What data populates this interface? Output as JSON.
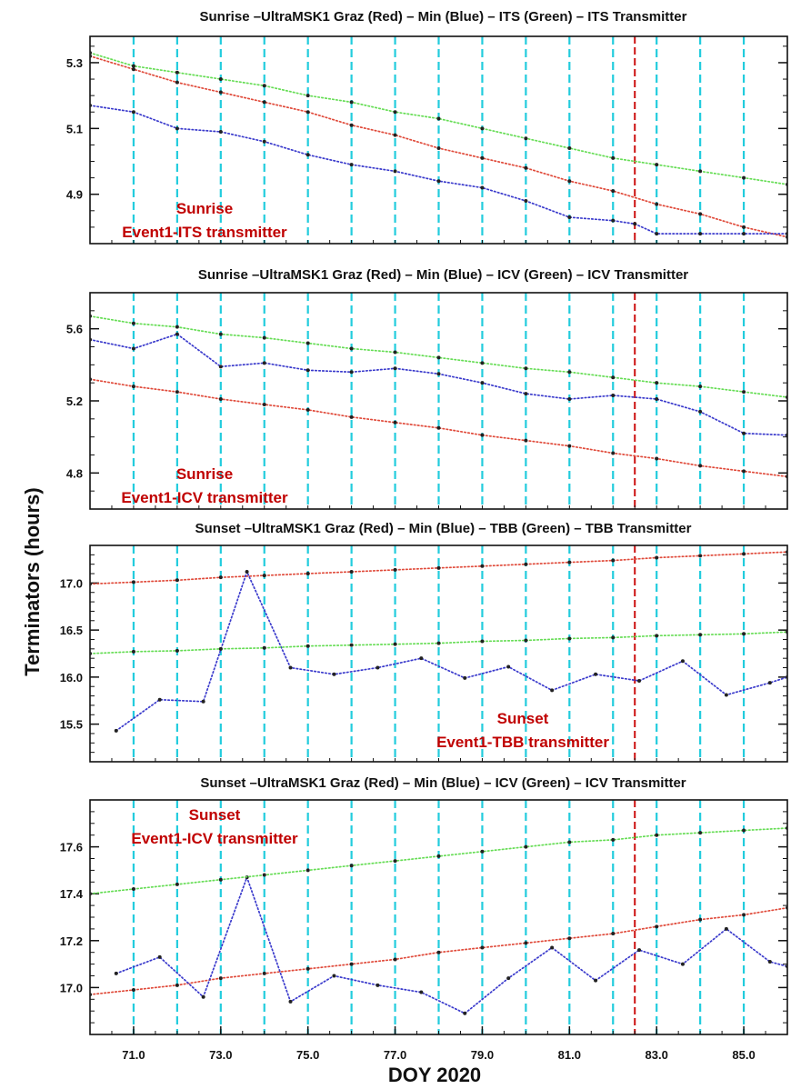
{
  "figure": {
    "ylabel": "Terminators (hours)",
    "xlabel": "DOY 2020"
  },
  "colors": {
    "red": "#e04a3a",
    "blue": "#3a3acc",
    "green": "#66dd55",
    "grid": "#22ccdd",
    "event": "#cc1111",
    "annotation": "#c00000"
  },
  "chart_data": [
    {
      "type": "line",
      "title": "Sunrise –UltraMSK1 Graz (Red) – Min (Blue) – ITS (Green) – ITS Transmitter",
      "annotation": [
        "Sunrise",
        "Event1-ITS transmitter"
      ],
      "annotation_position": "bottom-left",
      "event_day": 82.5,
      "grid": true,
      "xlim": [
        70,
        86
      ],
      "ylim": [
        4.75,
        5.38
      ],
      "yticks": [
        4.9,
        5.1,
        5.3
      ],
      "ytick_labels": [
        "4.9",
        "5.1",
        "5.3"
      ],
      "xticks": [],
      "xtick_labels": [],
      "series": [
        {
          "name": "UltraMSK1 Graz",
          "color": "red",
          "x": [
            70,
            71,
            72,
            73,
            74,
            75,
            76,
            77,
            78,
            79,
            80,
            81,
            82,
            83,
            84,
            85,
            86
          ],
          "y": [
            5.32,
            5.28,
            5.24,
            5.21,
            5.18,
            5.15,
            5.11,
            5.08,
            5.04,
            5.01,
            4.98,
            4.94,
            4.91,
            4.87,
            4.84,
            4.8,
            4.77
          ]
        },
        {
          "name": "Min",
          "color": "blue",
          "x": [
            70,
            71,
            72,
            73,
            74,
            75,
            76,
            77,
            78,
            79,
            80,
            81,
            82,
            82.5,
            83,
            84,
            85,
            86
          ],
          "y": [
            5.17,
            5.15,
            5.1,
            5.09,
            5.06,
            5.02,
            4.99,
            4.97,
            4.94,
            4.92,
            4.88,
            4.83,
            4.82,
            4.81,
            4.78,
            4.78,
            4.78,
            4.78
          ]
        },
        {
          "name": "ITS",
          "color": "green",
          "x": [
            70,
            71,
            72,
            73,
            74,
            75,
            76,
            77,
            78,
            79,
            80,
            81,
            82,
            83,
            84,
            85,
            86
          ],
          "y": [
            5.33,
            5.29,
            5.27,
            5.25,
            5.23,
            5.2,
            5.18,
            5.15,
            5.13,
            5.1,
            5.07,
            5.04,
            5.01,
            4.99,
            4.97,
            4.95,
            4.93
          ]
        }
      ]
    },
    {
      "type": "line",
      "title": "Sunrise –UltraMSK1 Graz (Red) – Min (Blue) – ICV (Green) – ICV Transmitter",
      "annotation": [
        "Sunrise",
        "Event1-ICV transmitter"
      ],
      "annotation_position": "bottom-left",
      "event_day": 82.5,
      "grid": true,
      "xlim": [
        70,
        86
      ],
      "ylim": [
        4.6,
        5.8
      ],
      "yticks": [
        4.8,
        5.2,
        5.6
      ],
      "ytick_labels": [
        "4.8",
        "5.2",
        "5.6"
      ],
      "xticks": [],
      "xtick_labels": [],
      "series": [
        {
          "name": "UltraMSK1 Graz",
          "color": "red",
          "x": [
            70,
            71,
            72,
            73,
            74,
            75,
            76,
            77,
            78,
            79,
            80,
            81,
            82,
            83,
            84,
            85,
            86
          ],
          "y": [
            5.32,
            5.28,
            5.25,
            5.21,
            5.18,
            5.15,
            5.11,
            5.08,
            5.05,
            5.01,
            4.98,
            4.95,
            4.91,
            4.88,
            4.84,
            4.81,
            4.78
          ]
        },
        {
          "name": "Min",
          "color": "blue",
          "x": [
            70,
            71,
            72,
            73,
            74,
            75,
            76,
            77,
            78,
            79,
            80,
            81,
            82,
            83,
            84,
            85,
            86
          ],
          "y": [
            5.54,
            5.49,
            5.57,
            5.39,
            5.41,
            5.37,
            5.36,
            5.38,
            5.35,
            5.3,
            5.24,
            5.21,
            5.23,
            5.21,
            5.14,
            5.02,
            5.01
          ]
        },
        {
          "name": "ICV",
          "color": "green",
          "x": [
            70,
            71,
            72,
            73,
            74,
            75,
            76,
            77,
            78,
            79,
            80,
            81,
            82,
            83,
            84,
            85,
            86
          ],
          "y": [
            5.67,
            5.63,
            5.61,
            5.57,
            5.55,
            5.52,
            5.49,
            5.47,
            5.44,
            5.41,
            5.38,
            5.36,
            5.33,
            5.3,
            5.28,
            5.25,
            5.22
          ]
        }
      ]
    },
    {
      "type": "line",
      "title": "Sunset –UltraMSK1 Graz (Red) – Min (Blue) – TBB (Green) – TBB Transmitter",
      "annotation": [
        "Sunset",
        "Event1-TBB transmitter"
      ],
      "annotation_position": "bottom-center",
      "event_day": 82.5,
      "grid": true,
      "xlim": [
        70,
        86
      ],
      "ylim": [
        15.1,
        17.4
      ],
      "yticks": [
        15.5,
        16.0,
        16.5,
        17.0
      ],
      "ytick_labels": [
        "15.5",
        "16.0",
        "16.5",
        "17.0"
      ],
      "xticks": [],
      "xtick_labels": [],
      "series": [
        {
          "name": "UltraMSK1 Graz",
          "color": "red",
          "x": [
            70,
            71,
            72,
            73,
            74,
            75,
            76,
            77,
            78,
            79,
            80,
            81,
            82,
            83,
            84,
            85,
            86
          ],
          "y": [
            16.99,
            17.01,
            17.03,
            17.06,
            17.08,
            17.1,
            17.12,
            17.14,
            17.16,
            17.18,
            17.2,
            17.22,
            17.24,
            17.27,
            17.29,
            17.31,
            17.33
          ]
        },
        {
          "name": "Min",
          "color": "blue",
          "x": [
            70.6,
            71.6,
            72.6,
            73.6,
            74.6,
            75.6,
            76.6,
            77.6,
            78.6,
            79.6,
            80.6,
            81.6,
            82.6,
            83.6,
            84.6,
            85.6,
            86
          ],
          "y": [
            15.43,
            15.76,
            15.74,
            17.12,
            16.1,
            16.03,
            16.1,
            16.2,
            15.99,
            16.11,
            15.86,
            16.03,
            15.96,
            16.17,
            15.81,
            15.94,
            16.0
          ]
        },
        {
          "name": "TBB",
          "color": "green",
          "x": [
            70,
            71,
            72,
            73,
            74,
            75,
            76,
            77,
            78,
            79,
            80,
            81,
            82,
            83,
            84,
            85,
            86
          ],
          "y": [
            16.25,
            16.27,
            16.28,
            16.3,
            16.31,
            16.33,
            16.34,
            16.35,
            16.36,
            16.38,
            16.39,
            16.41,
            16.42,
            16.44,
            16.45,
            16.46,
            16.48
          ]
        }
      ]
    },
    {
      "type": "line",
      "title": "Sunset –UltraMSK1 Graz (Red) – Min (Blue) – ICV (Green) – ICV Transmitter",
      "annotation": [
        "Sunset",
        "Event1-ICV transmitter"
      ],
      "annotation_position": "top-left",
      "event_day": 82.5,
      "grid": true,
      "xlim": [
        70,
        86
      ],
      "ylim": [
        16.8,
        17.8
      ],
      "yticks": [
        17.0,
        17.2,
        17.4,
        17.6
      ],
      "ytick_labels": [
        "17.0",
        "17.2",
        "17.4",
        "17.6"
      ],
      "xticks": [
        71,
        73,
        75,
        77,
        79,
        81,
        83,
        85
      ],
      "xtick_labels": [
        "71.0",
        "73.0",
        "75.0",
        "77.0",
        "79.0",
        "81.0",
        "83.0",
        "85.0"
      ],
      "series": [
        {
          "name": "UltraMSK1 Graz",
          "color": "red",
          "x": [
            70,
            71,
            72,
            73,
            74,
            75,
            76,
            77,
            78,
            79,
            80,
            81,
            82,
            83,
            84,
            85,
            86
          ],
          "y": [
            16.97,
            16.99,
            17.01,
            17.04,
            17.06,
            17.08,
            17.1,
            17.12,
            17.15,
            17.17,
            17.19,
            17.21,
            17.23,
            17.26,
            17.29,
            17.31,
            17.34
          ]
        },
        {
          "name": "Min",
          "color": "blue",
          "x": [
            70.6,
            71.6,
            72.6,
            73.6,
            74.6,
            75.6,
            76.6,
            77.6,
            78.6,
            79.6,
            80.6,
            81.6,
            82.6,
            83.6,
            84.6,
            85.6,
            86
          ],
          "y": [
            17.06,
            17.13,
            16.96,
            17.47,
            16.94,
            17.05,
            17.01,
            16.98,
            16.89,
            17.04,
            17.17,
            17.03,
            17.16,
            17.1,
            17.25,
            17.11,
            17.09
          ]
        },
        {
          "name": "ICV",
          "color": "green",
          "x": [
            70,
            71,
            72,
            73,
            74,
            75,
            76,
            77,
            78,
            79,
            80,
            81,
            82,
            83,
            84,
            85,
            86
          ],
          "y": [
            17.4,
            17.42,
            17.44,
            17.46,
            17.48,
            17.5,
            17.52,
            17.54,
            17.56,
            17.58,
            17.6,
            17.62,
            17.63,
            17.65,
            17.66,
            17.67,
            17.68
          ]
        }
      ]
    }
  ]
}
